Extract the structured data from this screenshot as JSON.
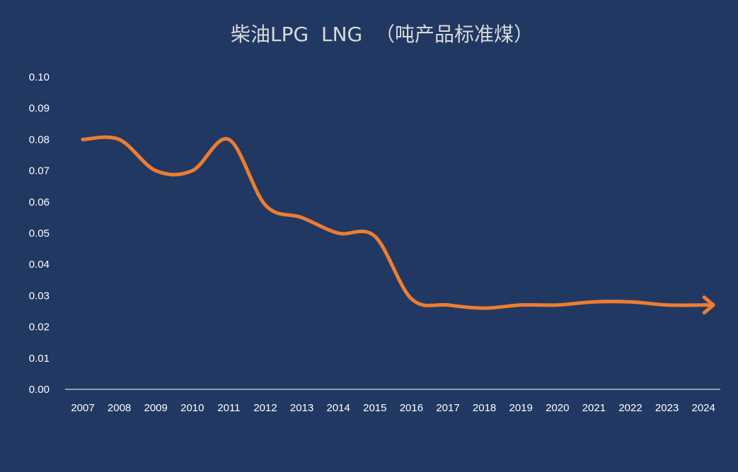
{
  "chart_data": {
    "type": "line",
    "title": "柴油LPG  LNG  （吨产品标准煤）",
    "xlabel": "",
    "ylabel": "",
    "categories": [
      "2007",
      "2008",
      "2009",
      "2010",
      "2011",
      "2012",
      "2013",
      "2014",
      "2015",
      "2016",
      "2017",
      "2018",
      "2019",
      "2020",
      "2021",
      "2022",
      "2023",
      "2024"
    ],
    "values": [
      0.08,
      0.08,
      0.07,
      0.07,
      0.08,
      0.059,
      0.055,
      0.05,
      0.049,
      0.029,
      0.027,
      0.026,
      0.027,
      0.027,
      0.028,
      0.028,
      0.027,
      0.027
    ],
    "ylim": [
      0,
      0.1
    ],
    "yticks": [
      "0.00",
      "0.01",
      "0.02",
      "0.03",
      "0.04",
      "0.05",
      "0.06",
      "0.07",
      "0.08",
      "0.09",
      "0.10"
    ],
    "grid": false,
    "legend": "none",
    "line_end_marker": "arrow",
    "colors": {
      "background": "#213863",
      "line": "#ed7d31",
      "axis": "#bfbfbf",
      "text": "#ffffff",
      "title": "#d9d9d9"
    }
  }
}
